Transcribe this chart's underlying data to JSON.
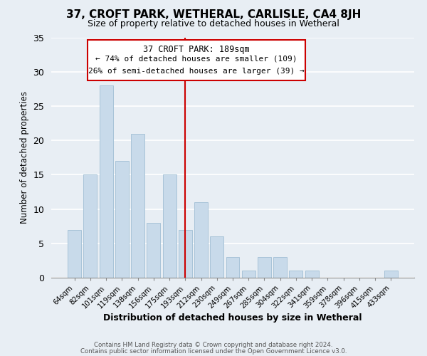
{
  "title": "37, CROFT PARK, WETHERAL, CARLISLE, CA4 8JH",
  "subtitle": "Size of property relative to detached houses in Wetheral",
  "xlabel": "Distribution of detached houses by size in Wetheral",
  "ylabel": "Number of detached properties",
  "bar_labels": [
    "64sqm",
    "82sqm",
    "101sqm",
    "119sqm",
    "138sqm",
    "156sqm",
    "175sqm",
    "193sqm",
    "212sqm",
    "230sqm",
    "249sqm",
    "267sqm",
    "285sqm",
    "304sqm",
    "322sqm",
    "341sqm",
    "359sqm",
    "378sqm",
    "396sqm",
    "415sqm",
    "433sqm"
  ],
  "bar_values": [
    7,
    15,
    28,
    17,
    21,
    8,
    15,
    7,
    11,
    6,
    3,
    1,
    3,
    3,
    1,
    1,
    0,
    0,
    0,
    0,
    1
  ],
  "bar_color": "#c8daea",
  "bar_edge_color": "#a8c4d8",
  "highlight_index": 7,
  "highlight_line_color": "#cc0000",
  "annotation_title": "37 CROFT PARK: 189sqm",
  "annotation_line1": "← 74% of detached houses are smaller (109)",
  "annotation_line2": "26% of semi-detached houses are larger (39) →",
  "annotation_box_color": "#ffffff",
  "annotation_box_edge": "#cc0000",
  "footer1": "Contains HM Land Registry data © Crown copyright and database right 2024.",
  "footer2": "Contains public sector information licensed under the Open Government Licence v3.0.",
  "ylim": [
    0,
    35
  ],
  "yticks": [
    0,
    5,
    10,
    15,
    20,
    25,
    30,
    35
  ],
  "background_color": "#e8eef4",
  "plot_bg_color": "#e8eef4"
}
